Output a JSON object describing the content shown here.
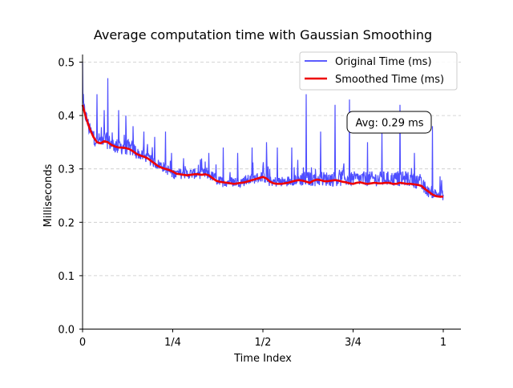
{
  "chart_data": {
    "type": "line",
    "title": "Average computation time with Gaussian Smoothing",
    "xlabel": "Time Index",
    "ylabel": "Milliseconds",
    "xlim": [
      0,
      1
    ],
    "ylim": [
      0,
      0.52
    ],
    "x_ticks": [
      {
        "value": 0,
        "label": "0"
      },
      {
        "value": 0.25,
        "label": "1/4"
      },
      {
        "value": 0.5,
        "label": "1/2"
      },
      {
        "value": 0.75,
        "label": "3/4"
      },
      {
        "value": 1,
        "label": "1"
      }
    ],
    "y_ticks": [
      {
        "value": 0.0,
        "label": "0.0"
      },
      {
        "value": 0.1,
        "label": "0.1"
      },
      {
        "value": 0.2,
        "label": "0.2"
      },
      {
        "value": 0.3,
        "label": "0.3"
      },
      {
        "value": 0.4,
        "label": "0.4"
      },
      {
        "value": 0.5,
        "label": "0.5"
      }
    ],
    "grid": "horizontal dashed",
    "legend_position": "top-right",
    "series": [
      {
        "name": "Original Time (ms)",
        "color": "#4444ff",
        "style": "noisy band",
        "base": [
          [
            0.0,
            0.42
          ],
          [
            0.02,
            0.37
          ],
          [
            0.04,
            0.35
          ],
          [
            0.06,
            0.355
          ],
          [
            0.08,
            0.345
          ],
          [
            0.1,
            0.34
          ],
          [
            0.12,
            0.34
          ],
          [
            0.14,
            0.335
          ],
          [
            0.16,
            0.325
          ],
          [
            0.18,
            0.32
          ],
          [
            0.2,
            0.31
          ],
          [
            0.22,
            0.305
          ],
          [
            0.25,
            0.29
          ],
          [
            0.28,
            0.29
          ],
          [
            0.3,
            0.29
          ],
          [
            0.34,
            0.29
          ],
          [
            0.36,
            0.285
          ],
          [
            0.38,
            0.275
          ],
          [
            0.4,
            0.275
          ],
          [
            0.44,
            0.275
          ],
          [
            0.47,
            0.28
          ],
          [
            0.5,
            0.285
          ],
          [
            0.52,
            0.275
          ],
          [
            0.56,
            0.275
          ],
          [
            0.6,
            0.28
          ],
          [
            0.63,
            0.28
          ],
          [
            0.66,
            0.28
          ],
          [
            0.7,
            0.28
          ],
          [
            0.75,
            0.28
          ],
          [
            0.8,
            0.28
          ],
          [
            0.86,
            0.28
          ],
          [
            0.9,
            0.28
          ],
          [
            0.93,
            0.275
          ],
          [
            0.96,
            0.255
          ],
          [
            1.0,
            0.25
          ]
        ],
        "spikes": [
          [
            0.0,
            0.5
          ],
          [
            0.04,
            0.44
          ],
          [
            0.06,
            0.41
          ],
          [
            0.07,
            0.47
          ],
          [
            0.1,
            0.41
          ],
          [
            0.12,
            0.4
          ],
          [
            0.14,
            0.38
          ],
          [
            0.17,
            0.37
          ],
          [
            0.2,
            0.36
          ],
          [
            0.23,
            0.37
          ],
          [
            0.28,
            0.32
          ],
          [
            0.35,
            0.33
          ],
          [
            0.39,
            0.34
          ],
          [
            0.43,
            0.33
          ],
          [
            0.47,
            0.34
          ],
          [
            0.51,
            0.35
          ],
          [
            0.54,
            0.34
          ],
          [
            0.58,
            0.34
          ],
          [
            0.62,
            0.44
          ],
          [
            0.66,
            0.37
          ],
          [
            0.7,
            0.42
          ],
          [
            0.74,
            0.43
          ],
          [
            0.79,
            0.35
          ],
          [
            0.83,
            0.37
          ],
          [
            0.88,
            0.42
          ],
          [
            0.92,
            0.33
          ],
          [
            0.97,
            0.38
          ]
        ]
      },
      {
        "name": "Smoothed Time (ms)",
        "color": "#ee0000",
        "style": "line",
        "points": [
          [
            0.0,
            0.42
          ],
          [
            0.01,
            0.395
          ],
          [
            0.02,
            0.375
          ],
          [
            0.03,
            0.36
          ],
          [
            0.04,
            0.35
          ],
          [
            0.05,
            0.348
          ],
          [
            0.06,
            0.352
          ],
          [
            0.07,
            0.35
          ],
          [
            0.08,
            0.345
          ],
          [
            0.09,
            0.342
          ],
          [
            0.1,
            0.34
          ],
          [
            0.11,
            0.34
          ],
          [
            0.12,
            0.339
          ],
          [
            0.13,
            0.337
          ],
          [
            0.14,
            0.333
          ],
          [
            0.15,
            0.328
          ],
          [
            0.16,
            0.325
          ],
          [
            0.17,
            0.323
          ],
          [
            0.18,
            0.32
          ],
          [
            0.19,
            0.315
          ],
          [
            0.2,
            0.31
          ],
          [
            0.21,
            0.305
          ],
          [
            0.22,
            0.302
          ],
          [
            0.23,
            0.3
          ],
          [
            0.24,
            0.298
          ],
          [
            0.25,
            0.295
          ],
          [
            0.26,
            0.291
          ],
          [
            0.27,
            0.29
          ],
          [
            0.28,
            0.289
          ],
          [
            0.29,
            0.288
          ],
          [
            0.3,
            0.289
          ],
          [
            0.31,
            0.29
          ],
          [
            0.32,
            0.29
          ],
          [
            0.33,
            0.289
          ],
          [
            0.34,
            0.29
          ],
          [
            0.35,
            0.288
          ],
          [
            0.36,
            0.283
          ],
          [
            0.37,
            0.278
          ],
          [
            0.38,
            0.276
          ],
          [
            0.39,
            0.275
          ],
          [
            0.4,
            0.274
          ],
          [
            0.41,
            0.273
          ],
          [
            0.42,
            0.272
          ],
          [
            0.43,
            0.273
          ],
          [
            0.44,
            0.274
          ],
          [
            0.45,
            0.275
          ],
          [
            0.46,
            0.277
          ],
          [
            0.47,
            0.279
          ],
          [
            0.48,
            0.281
          ],
          [
            0.49,
            0.283
          ],
          [
            0.5,
            0.285
          ],
          [
            0.51,
            0.282
          ],
          [
            0.52,
            0.276
          ],
          [
            0.53,
            0.273
          ],
          [
            0.54,
            0.272
          ],
          [
            0.55,
            0.272
          ],
          [
            0.56,
            0.273
          ],
          [
            0.57,
            0.274
          ],
          [
            0.58,
            0.276
          ],
          [
            0.59,
            0.278
          ],
          [
            0.6,
            0.279
          ],
          [
            0.61,
            0.278
          ],
          [
            0.62,
            0.276
          ],
          [
            0.63,
            0.274
          ],
          [
            0.64,
            0.278
          ],
          [
            0.65,
            0.28
          ],
          [
            0.66,
            0.279
          ],
          [
            0.67,
            0.277
          ],
          [
            0.68,
            0.277
          ],
          [
            0.69,
            0.278
          ],
          [
            0.7,
            0.279
          ],
          [
            0.71,
            0.278
          ],
          [
            0.72,
            0.276
          ],
          [
            0.73,
            0.275
          ],
          [
            0.74,
            0.273
          ],
          [
            0.75,
            0.272
          ],
          [
            0.76,
            0.274
          ],
          [
            0.77,
            0.275
          ],
          [
            0.78,
            0.273
          ],
          [
            0.79,
            0.272
          ],
          [
            0.8,
            0.273
          ],
          [
            0.81,
            0.274
          ],
          [
            0.82,
            0.273
          ],
          [
            0.83,
            0.273
          ],
          [
            0.84,
            0.274
          ],
          [
            0.85,
            0.274
          ],
          [
            0.86,
            0.272
          ],
          [
            0.87,
            0.272
          ],
          [
            0.88,
            0.274
          ],
          [
            0.89,
            0.273
          ],
          [
            0.9,
            0.272
          ],
          [
            0.91,
            0.272
          ],
          [
            0.92,
            0.271
          ],
          [
            0.93,
            0.27
          ],
          [
            0.94,
            0.268
          ],
          [
            0.95,
            0.262
          ],
          [
            0.96,
            0.257
          ],
          [
            0.97,
            0.252
          ],
          [
            0.98,
            0.249
          ],
          [
            0.99,
            0.248
          ],
          [
            1.0,
            0.248
          ]
        ]
      }
    ],
    "annotation": {
      "text": "Avg: 0.29 ms",
      "x": 0.85,
      "y": 0.388
    }
  }
}
